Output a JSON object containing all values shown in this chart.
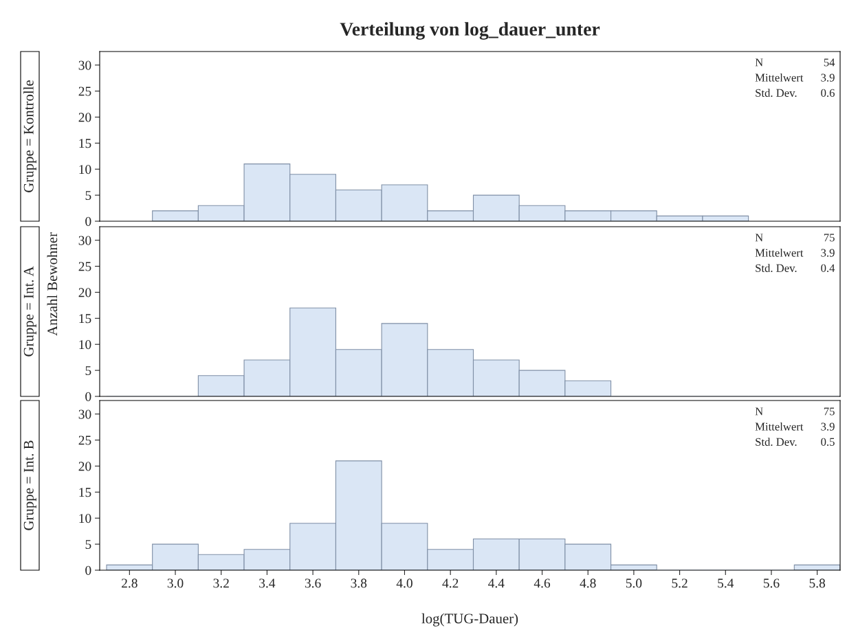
{
  "chart_data": [
    {
      "type": "histogram",
      "title": "Verteilung von log_dauer_unter",
      "subtitle": "Gruppe = Kontrolle",
      "bins": [
        2.9,
        3.1,
        3.3,
        3.5,
        3.7,
        3.9,
        4.1,
        4.3,
        4.5,
        4.7,
        4.9,
        5.1,
        5.3,
        5.5
      ],
      "values": [
        2,
        3,
        11,
        9,
        6,
        7,
        2,
        5,
        3,
        2,
        2,
        1,
        1
      ],
      "color": "#dae6f5",
      "xlim": [
        2.67,
        5.9
      ],
      "ylim": [
        0,
        32.6
      ],
      "yticks": [
        0,
        5,
        10,
        15,
        20,
        25,
        30
      ],
      "tick_labels": "y",
      "grid": false,
      "annotations": [
        "N 54",
        "Mittelwert 3.9",
        "Std. Dev. 0.6"
      ]
    },
    {
      "type": "histogram",
      "subtitle": "Gruppe = Int. A",
      "ylabel": "Anzahl Bewohner",
      "bins": [
        2.7,
        2.9,
        3.1,
        3.3,
        3.5,
        3.7,
        3.9,
        4.1,
        4.3,
        4.5,
        4.7,
        4.9,
        5.1,
        5.3,
        5.5,
        5.7,
        5.9
      ],
      "values": [
        0,
        0,
        4,
        7,
        17,
        9,
        14,
        9,
        7,
        5,
        3,
        0,
        0,
        0,
        0,
        0
      ],
      "color": "#dae6f5",
      "xlim": [
        2.67,
        5.9
      ],
      "ylim": [
        0,
        32.6
      ],
      "yticks": [
        0,
        5,
        10,
        15,
        20,
        25,
        30
      ],
      "tick_labels": "y",
      "grid": false,
      "annotations": [
        "N 75",
        "Mittelwert 3.9",
        "Std. Dev. 0.4"
      ]
    },
    {
      "type": "histogram",
      "subtitle": "Gruppe = Int. B",
      "xlabel": "log(TUG-Dauer)",
      "bins": [
        2.7,
        2.9,
        3.1,
        3.3,
        3.5,
        3.7,
        3.9,
        4.1,
        4.3,
        4.5,
        4.7,
        4.9,
        5.1,
        5.3,
        5.5,
        5.7,
        5.9
      ],
      "values": [
        1,
        5,
        3,
        4,
        9,
        21,
        9,
        4,
        6,
        6,
        5,
        1,
        0,
        0,
        0,
        1
      ],
      "color": "#dae6f5",
      "xlim": [
        2.67,
        5.9
      ],
      "ylim": [
        0,
        32.6
      ],
      "xticks": [
        2.8,
        {
          "value": 3.0,
          "label": "3.0"
        },
        3.2,
        3.4,
        3.6,
        3.8,
        {
          "value": 4.0,
          "label": "4.0"
        },
        4.2,
        4.4,
        4.6,
        4.8,
        {
          "value": 5.0,
          "label": "5.0"
        },
        5.2,
        5.4,
        5.6,
        5.8
      ],
      "yticks": [
        0,
        5,
        10,
        15,
        20,
        25,
        30
      ],
      "grid": false,
      "annotations": [
        "N 75",
        "Mittelwert 3.9",
        "Std. Dev. 0.5"
      ]
    }
  ]
}
